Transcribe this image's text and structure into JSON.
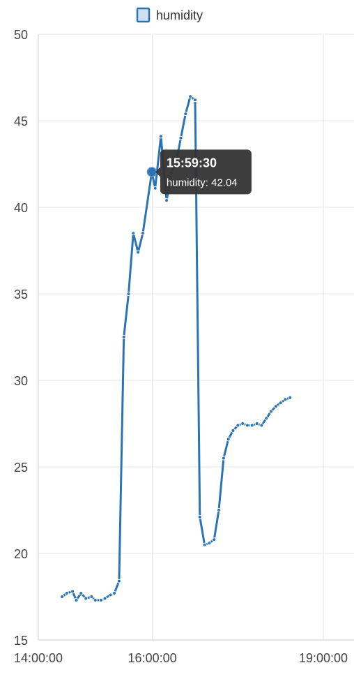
{
  "chart_data": {
    "type": "line",
    "title": "",
    "xlabel": "",
    "ylabel": "",
    "legend": {
      "position": "top",
      "entries": [
        "humidity"
      ]
    },
    "grid": true,
    "ylim": [
      15,
      50
    ],
    "xlim": [
      "14:00:00",
      "19:30:00"
    ],
    "y_ticks": [
      "15",
      "20",
      "25",
      "30",
      "35",
      "40",
      "45",
      "50"
    ],
    "x_ticks": [
      "14:00:00",
      "16:00:00",
      "19:00:00"
    ],
    "colors": {
      "line": "#2b73b3",
      "grid": "#e6e6e6",
      "tooltip_bg": "#333333"
    },
    "series": [
      {
        "name": "humidity",
        "points": [
          [
            "14:25:00",
            17.5
          ],
          [
            "14:30:00",
            17.7
          ],
          [
            "14:36:00",
            17.8
          ],
          [
            "14:40:00",
            17.3
          ],
          [
            "14:45:00",
            17.7
          ],
          [
            "14:50:00",
            17.4
          ],
          [
            "14:56:00",
            17.5
          ],
          [
            "15:00:00",
            17.3
          ],
          [
            "15:06:00",
            17.3
          ],
          [
            "15:10:00",
            17.4
          ],
          [
            "15:16:00",
            17.6
          ],
          [
            "15:20:00",
            17.7
          ],
          [
            "15:25:00",
            18.4
          ],
          [
            "15:30:00",
            32.5
          ],
          [
            "15:35:00",
            35.0
          ],
          [
            "15:40:00",
            38.5
          ],
          [
            "15:45:00",
            37.4
          ],
          [
            "15:50:00",
            38.5
          ],
          [
            "15:59:30",
            42.04
          ],
          [
            "16:03:00",
            41.1
          ],
          [
            "16:09:00",
            44.1
          ],
          [
            "16:15:00",
            40.4
          ],
          [
            "16:20:00",
            42.0
          ],
          [
            "16:25:00",
            42.6
          ],
          [
            "16:30:00",
            44.0
          ],
          [
            "16:35:00",
            45.4
          ],
          [
            "16:40:00",
            46.4
          ],
          [
            "16:45:00",
            46.2
          ],
          [
            "16:50:00",
            22.1
          ],
          [
            "16:55:00",
            20.5
          ],
          [
            "17:00:00",
            20.6
          ],
          [
            "17:05:00",
            20.8
          ],
          [
            "17:10:00",
            22.5
          ],
          [
            "17:15:00",
            25.5
          ],
          [
            "17:20:00",
            26.6
          ],
          [
            "17:25:00",
            27.1
          ],
          [
            "17:30:00",
            27.4
          ],
          [
            "17:35:00",
            27.5
          ],
          [
            "17:40:00",
            27.4
          ],
          [
            "17:45:00",
            27.4
          ],
          [
            "17:50:00",
            27.5
          ],
          [
            "17:55:00",
            27.4
          ],
          [
            "18:00:00",
            27.8
          ],
          [
            "18:05:00",
            28.2
          ],
          [
            "18:10:00",
            28.5
          ],
          [
            "18:15:00",
            28.7
          ],
          [
            "18:20:00",
            28.9
          ],
          [
            "18:25:00",
            29.0
          ]
        ]
      }
    ],
    "tooltip": {
      "time": "15:59:30",
      "text": "humidity: 42.04",
      "x": "15:59:30",
      "y": 42.04
    }
  }
}
